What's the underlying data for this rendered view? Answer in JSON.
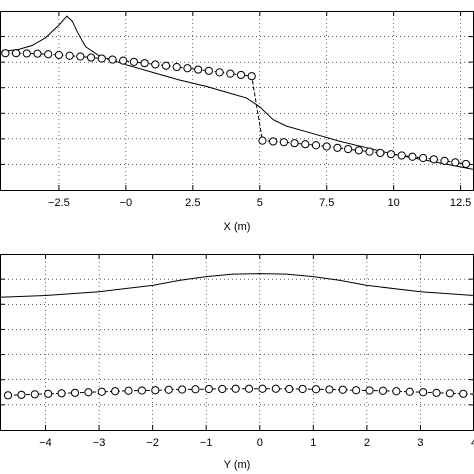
{
  "chart_data": [
    {
      "type": "line",
      "xlabel": "X (m)",
      "ylabel": "",
      "title": "",
      "xlim": [
        -4.7,
        13.0
      ],
      "ylim": [
        0,
        7
      ],
      "grid": true,
      "xticks": [
        -2.5,
        0,
        2.5,
        5,
        7.5,
        10,
        12.5
      ],
      "xtick_labels": [
        "−2.5",
        "−0",
        "2.5",
        "5",
        "7.5",
        "10",
        "12.5"
      ],
      "yticks": [
        1,
        2,
        3,
        4,
        5,
        6
      ],
      "series": [
        {
          "style": "solid",
          "x": [
            -4.7,
            -4.0,
            -3.5,
            -3.0,
            -2.5,
            -2.2,
            -2.0,
            -1.8,
            -1.5,
            -1.0,
            0.0,
            1.0,
            2.0,
            3.0,
            4.0,
            4.5,
            5.0,
            5.5,
            6.0,
            7.0,
            8.0,
            9.0,
            10.0,
            11.0,
            12.0,
            13.0
          ],
          "y": [
            5.4,
            5.5,
            5.65,
            5.95,
            6.45,
            6.8,
            6.6,
            6.15,
            5.6,
            5.25,
            4.9,
            4.6,
            4.3,
            4.05,
            3.75,
            3.6,
            3.25,
            2.75,
            2.5,
            2.2,
            1.9,
            1.65,
            1.4,
            1.2,
            1.0,
            0.8
          ]
        },
        {
          "style": "circles-dashed",
          "x": [
            -4.5,
            -4.1,
            -3.7,
            -3.3,
            -2.9,
            -2.5,
            -2.1,
            -1.7,
            -1.3,
            -0.9,
            -0.5,
            -0.1,
            0.3,
            0.7,
            1.1,
            1.5,
            1.9,
            2.3,
            2.7,
            3.1,
            3.5,
            3.9,
            4.3,
            4.7,
            5.1,
            5.5,
            5.9,
            6.3,
            6.7,
            7.1,
            7.5,
            7.9,
            8.3,
            8.7,
            9.1,
            9.5,
            9.9,
            10.3,
            10.7,
            11.1,
            11.5,
            11.9,
            12.3,
            12.7
          ],
          "y": [
            5.35,
            5.35,
            5.34,
            5.33,
            5.31,
            5.28,
            5.25,
            5.22,
            5.18,
            5.14,
            5.1,
            5.06,
            5.01,
            4.96,
            4.91,
            4.86,
            4.81,
            4.76,
            4.71,
            4.66,
            4.6,
            4.55,
            4.5,
            4.45,
            1.93,
            1.9,
            1.87,
            1.83,
            1.79,
            1.75,
            1.7,
            1.65,
            1.6,
            1.55,
            1.5,
            1.45,
            1.4,
            1.35,
            1.3,
            1.25,
            1.2,
            1.14,
            1.08,
            1.02
          ]
        }
      ]
    },
    {
      "type": "line",
      "xlabel": "Y (m)",
      "ylabel": "",
      "title": "",
      "xlim": [
        -4.85,
        4.0
      ],
      "ylim": [
        0,
        7
      ],
      "grid": true,
      "xticks": [
        -4,
        -3,
        -2,
        -1,
        0,
        1,
        2,
        3,
        4
      ],
      "xtick_labels": [
        "−4",
        "−3",
        "−2",
        "−1",
        "0",
        "1",
        "2",
        "3",
        "4"
      ],
      "yticks": [
        1,
        2,
        3,
        4,
        5,
        6
      ],
      "series": [
        {
          "style": "solid",
          "x": [
            -4.85,
            -4.0,
            -3.0,
            -2.0,
            -1.5,
            -1.0,
            -0.5,
            0.0,
            0.5,
            1.0,
            1.5,
            2.0,
            3.0,
            4.0,
            4.3
          ],
          "y": [
            5.28,
            5.35,
            5.5,
            5.75,
            5.95,
            6.1,
            6.2,
            6.22,
            6.2,
            6.1,
            5.95,
            5.75,
            5.5,
            5.35,
            5.3
          ],
          "y_comment": ""
        },
        {
          "style": "circles-dashed",
          "x": [
            -4.7,
            -4.45,
            -4.2,
            -3.95,
            -3.7,
            -3.45,
            -3.2,
            -2.95,
            -2.7,
            -2.45,
            -2.2,
            -1.95,
            -1.7,
            -1.45,
            -1.2,
            -0.95,
            -0.7,
            -0.45,
            -0.2,
            0.05,
            0.3,
            0.55,
            0.8,
            1.05,
            1.3,
            1.55,
            1.8,
            2.05,
            2.3,
            2.55,
            2.8,
            3.05,
            3.3,
            3.55,
            3.8,
            4.05
          ],
          "y": [
            1.38,
            1.4,
            1.42,
            1.44,
            1.46,
            1.48,
            1.5,
            1.52,
            1.54,
            1.56,
            1.57,
            1.58,
            1.6,
            1.61,
            1.62,
            1.63,
            1.63,
            1.64,
            1.64,
            1.64,
            1.64,
            1.63,
            1.63,
            1.62,
            1.61,
            1.6,
            1.58,
            1.57,
            1.56,
            1.54,
            1.52,
            1.5,
            1.48,
            1.46,
            1.44,
            1.42
          ]
        }
      ]
    }
  ]
}
